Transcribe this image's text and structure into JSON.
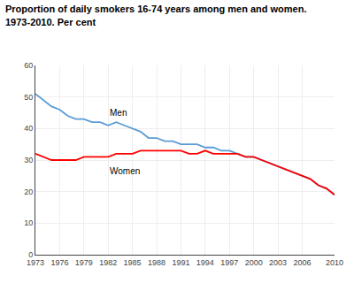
{
  "chart_data": {
    "type": "line",
    "title": "Proportion of daily smokers 16-74 years among men and women.",
    "subtitle": "1973-2010. Per cent",
    "ylabel": "Per cent",
    "x": [
      1973,
      1974,
      1975,
      1976,
      1977,
      1978,
      1979,
      1980,
      1981,
      1982,
      1983,
      1984,
      1985,
      1986,
      1987,
      1988,
      1989,
      1990,
      1991,
      1992,
      1993,
      1994,
      1995,
      1996,
      1997,
      1998,
      1999,
      2000,
      2001,
      2002,
      2003,
      2004,
      2005,
      2006,
      2007,
      2008,
      2009,
      2010
    ],
    "series": [
      {
        "name": "Men",
        "color": "#5b9bd5",
        "values": [
          51,
          49,
          47,
          46,
          44,
          43,
          43,
          42,
          42,
          41,
          42,
          41,
          40,
          39,
          37,
          37,
          36,
          36,
          35,
          35,
          35,
          34,
          34,
          33,
          33,
          32,
          31,
          31,
          30,
          29,
          28,
          27,
          26,
          25,
          24,
          22,
          21,
          19
        ]
      },
      {
        "name": "Women",
        "color": "#ff0000",
        "values": [
          32,
          31,
          30,
          30,
          30,
          30,
          31,
          31,
          31,
          31,
          32,
          32,
          32,
          33,
          33,
          33,
          33,
          33,
          33,
          32,
          32,
          33,
          32,
          32,
          32,
          32,
          31,
          31,
          30,
          29,
          28,
          27,
          26,
          25,
          24,
          22,
          21,
          19
        ]
      }
    ],
    "annotations": [
      {
        "text": "Men",
        "x": 1982,
        "y": 43,
        "position": "above"
      },
      {
        "text": "Women",
        "x": 1982,
        "y": 28.5,
        "position": "below"
      }
    ],
    "xlim": [
      1973,
      2010
    ],
    "xticks": [
      1973,
      1976,
      1979,
      1982,
      1985,
      1988,
      1991,
      1994,
      1997,
      2000,
      2003,
      2006,
      2010
    ],
    "ylim": [
      0,
      60
    ],
    "yticks": [
      0,
      10,
      20,
      30,
      40,
      50,
      60
    ],
    "grid": true
  }
}
